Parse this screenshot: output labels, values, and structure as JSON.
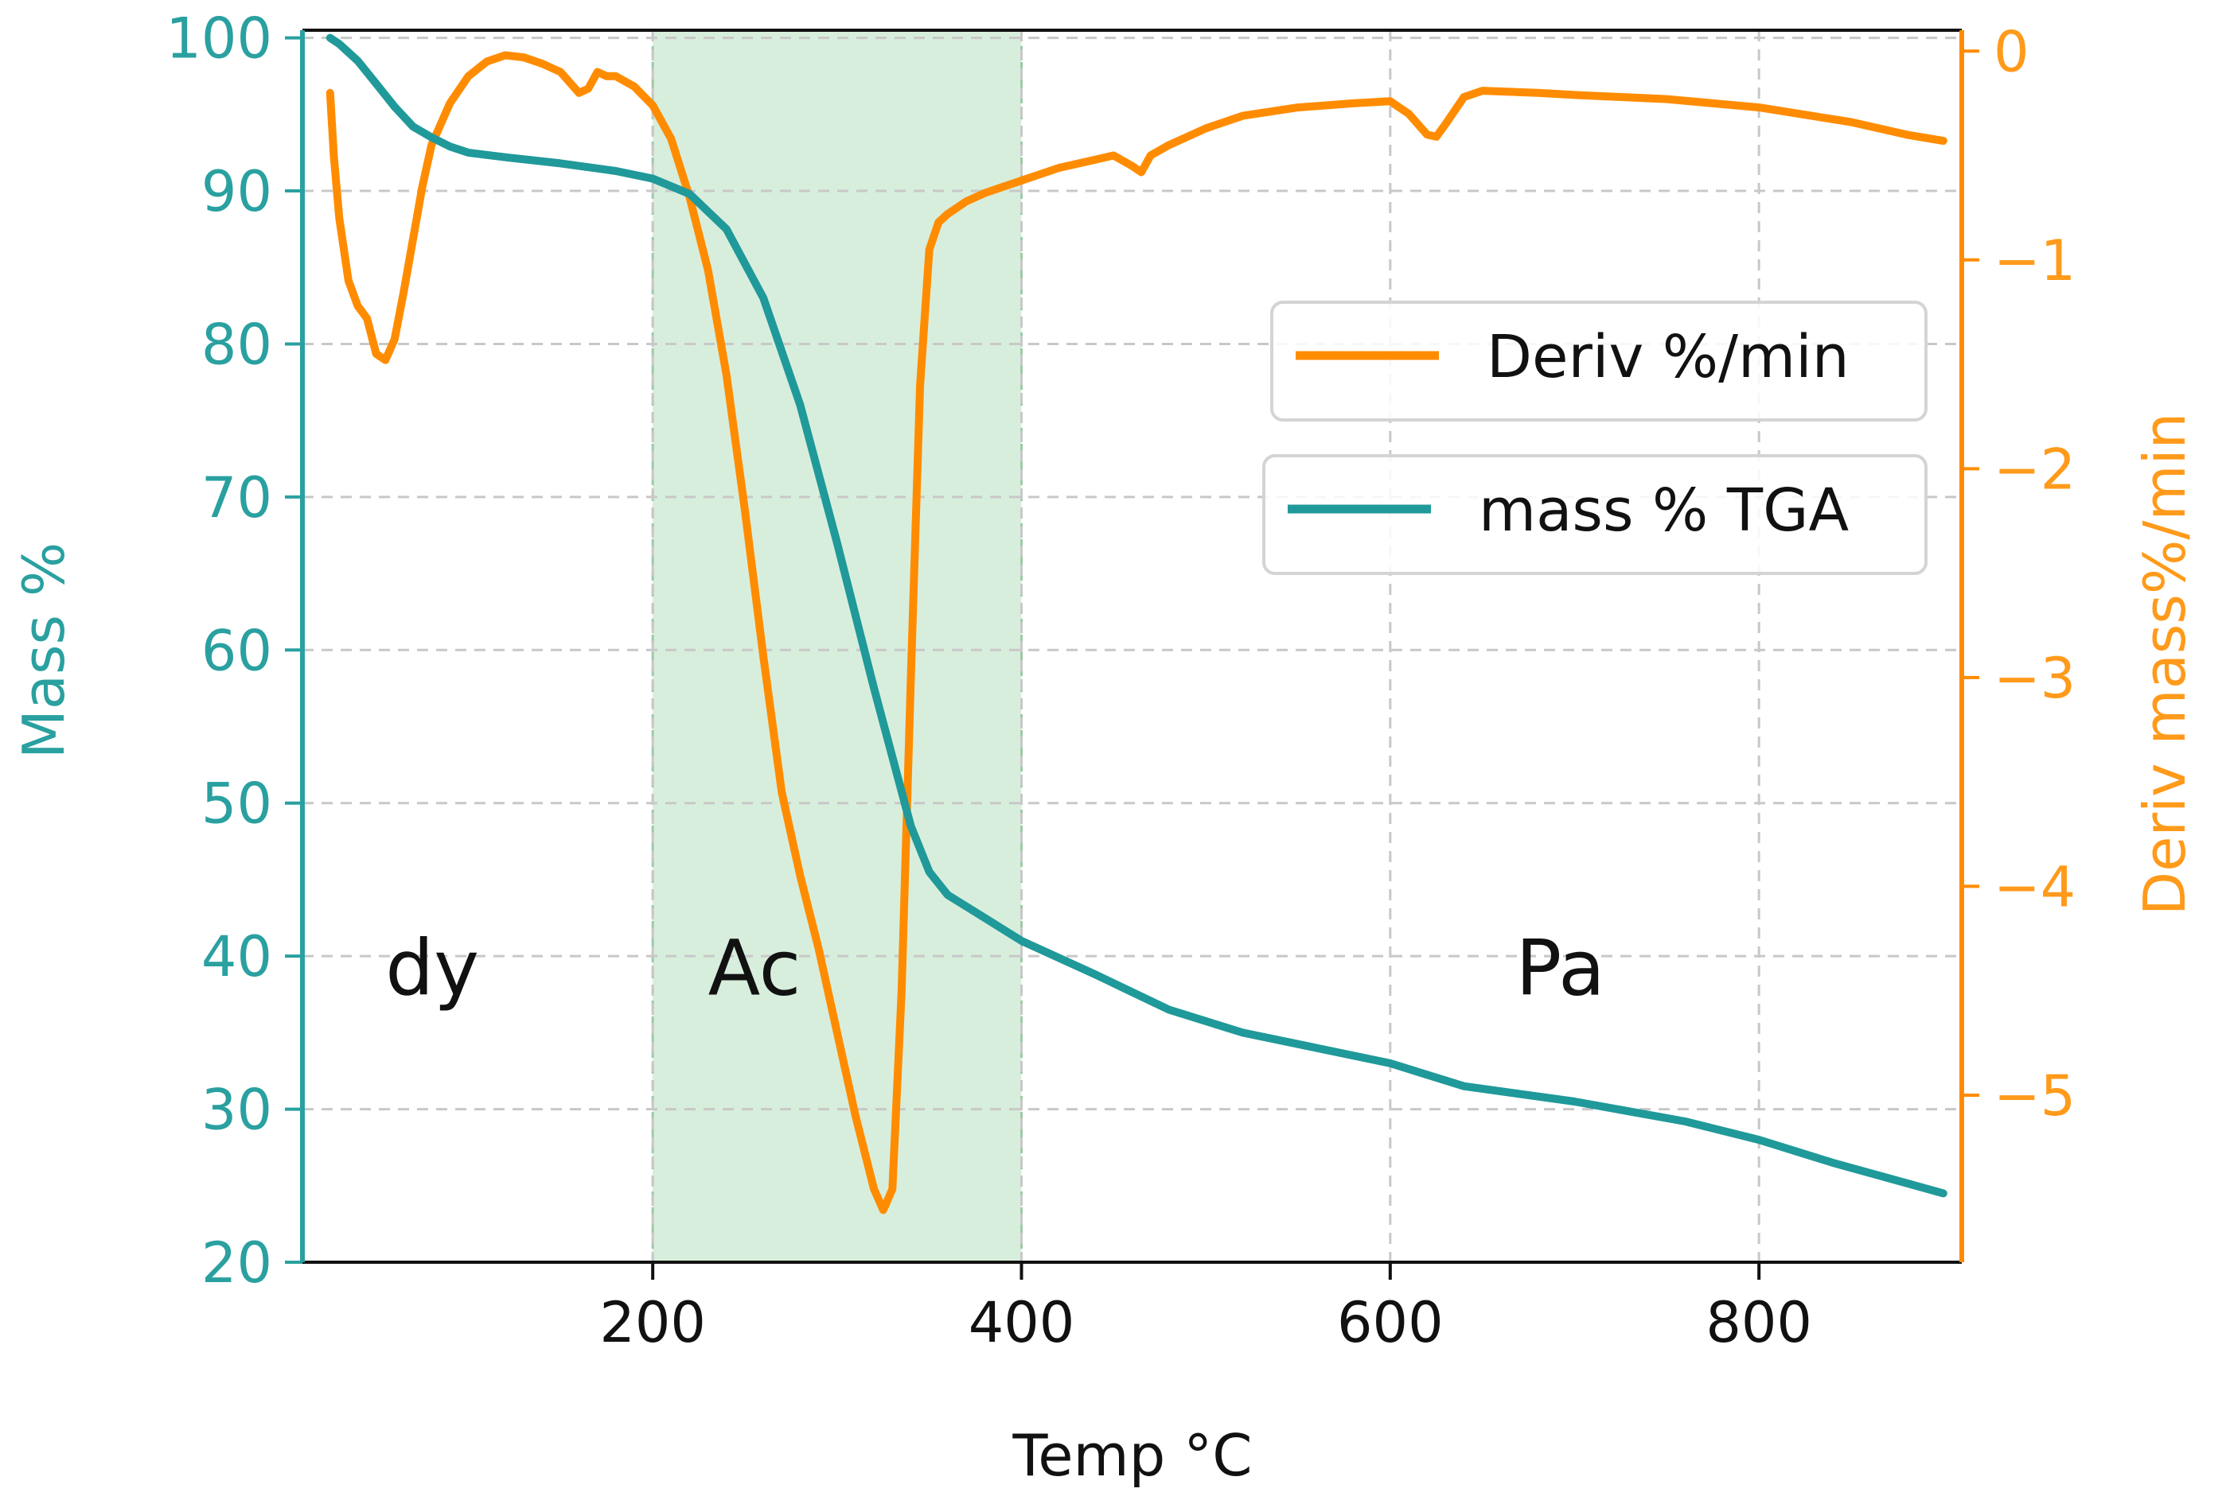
{
  "chart_data": {
    "type": "line",
    "xlabel": "Temp °C",
    "ylabel_left": "Mass %",
    "ylabel_right": "Deriv mass%/min",
    "xlim": [
      10,
      910
    ],
    "ylim_left": [
      20,
      100.5
    ],
    "ylim_right": [
      -5.8,
      0.1
    ],
    "x_ticks": [
      {
        "value": 200,
        "label": "200"
      },
      {
        "value": 400,
        "label": "400"
      },
      {
        "value": 600,
        "label": "600"
      },
      {
        "value": 800,
        "label": "800"
      }
    ],
    "y_left_ticks": [
      {
        "value": 20,
        "label": "20"
      },
      {
        "value": 30,
        "label": "30"
      },
      {
        "value": 40,
        "label": "40"
      },
      {
        "value": 50,
        "label": "50"
      },
      {
        "value": 60,
        "label": "60"
      },
      {
        "value": 70,
        "label": "70"
      },
      {
        "value": 80,
        "label": "80"
      },
      {
        "value": 90,
        "label": "90"
      },
      {
        "value": 100,
        "label": "100"
      }
    ],
    "y_right_ticks": [
      {
        "value": 0,
        "label": "0"
      },
      {
        "value": -1,
        "label": "−1"
      },
      {
        "value": -2,
        "label": "−2"
      },
      {
        "value": -3,
        "label": "−3"
      },
      {
        "value": -4,
        "label": "−4"
      },
      {
        "value": -5,
        "label": "−5"
      }
    ],
    "grid": true,
    "shaded_region": {
      "from": 200,
      "to": 400,
      "color": "#d8eedc"
    },
    "annotations": [
      {
        "text": "dy",
        "x": 55,
        "y": 37.5
      },
      {
        "text": "Ac",
        "x": 230,
        "y": 37.5
      },
      {
        "text": "Pa",
        "x": 668,
        "y": 37.5
      }
    ],
    "legend": {
      "placement": "upper-right"
    },
    "series": [
      {
        "name": "Deriv %/min",
        "axis": "right",
        "color": "#ff8c00",
        "x": [
          25,
          27,
          30,
          35,
          40,
          45,
          50,
          55,
          60,
          65,
          70,
          75,
          80,
          90,
          100,
          110,
          120,
          130,
          140,
          150,
          160,
          165,
          170,
          175,
          180,
          190,
          200,
          210,
          220,
          230,
          240,
          250,
          260,
          270,
          280,
          290,
          300,
          310,
          320,
          325,
          330,
          335,
          340,
          345,
          350,
          355,
          360,
          365,
          370,
          380,
          390,
          400,
          420,
          440,
          450,
          460,
          465,
          470,
          480,
          500,
          520,
          550,
          580,
          600,
          610,
          620,
          625,
          630,
          640,
          650,
          680,
          700,
          750,
          800,
          850,
          880,
          900
        ],
        "y": [
          -0.2,
          -0.5,
          -0.8,
          -1.1,
          -1.22,
          -1.28,
          -1.45,
          -1.48,
          -1.38,
          -1.15,
          -0.9,
          -0.65,
          -0.45,
          -0.25,
          -0.12,
          -0.05,
          -0.02,
          -0.03,
          -0.06,
          -0.1,
          -0.2,
          -0.18,
          -0.1,
          -0.12,
          -0.12,
          -0.17,
          -0.26,
          -0.42,
          -0.7,
          -1.05,
          -1.55,
          -2.2,
          -2.9,
          -3.55,
          -3.95,
          -4.3,
          -4.7,
          -5.1,
          -5.45,
          -5.55,
          -5.45,
          -4.5,
          -3.0,
          -1.6,
          -0.95,
          -0.82,
          -0.78,
          -0.75,
          -0.72,
          -0.68,
          -0.65,
          -0.62,
          -0.56,
          -0.52,
          -0.5,
          -0.55,
          -0.58,
          -0.5,
          -0.45,
          -0.37,
          -0.31,
          -0.27,
          -0.25,
          -0.24,
          -0.3,
          -0.4,
          -0.41,
          -0.35,
          -0.22,
          -0.19,
          -0.2,
          -0.21,
          -0.23,
          -0.27,
          -0.34,
          -0.4,
          -0.43
        ]
      },
      {
        "name": "mass % TGA",
        "axis": "left",
        "color": "#20999a",
        "x": [
          25,
          30,
          40,
          50,
          60,
          70,
          80,
          90,
          100,
          120,
          150,
          180,
          200,
          220,
          240,
          260,
          280,
          300,
          320,
          340,
          350,
          360,
          380,
          400,
          440,
          480,
          520,
          560,
          600,
          640,
          700,
          760,
          800,
          840,
          900
        ],
        "y": [
          100,
          99.6,
          98.5,
          97,
          95.5,
          94.2,
          93.5,
          92.9,
          92.5,
          92.2,
          91.8,
          91.3,
          90.8,
          89.8,
          87.5,
          83,
          76,
          67,
          57.5,
          48.5,
          45.5,
          44,
          42.5,
          41,
          38.8,
          36.5,
          35,
          34,
          33,
          31.5,
          30.5,
          29.2,
          28,
          26.5,
          24.5
        ]
      }
    ]
  }
}
